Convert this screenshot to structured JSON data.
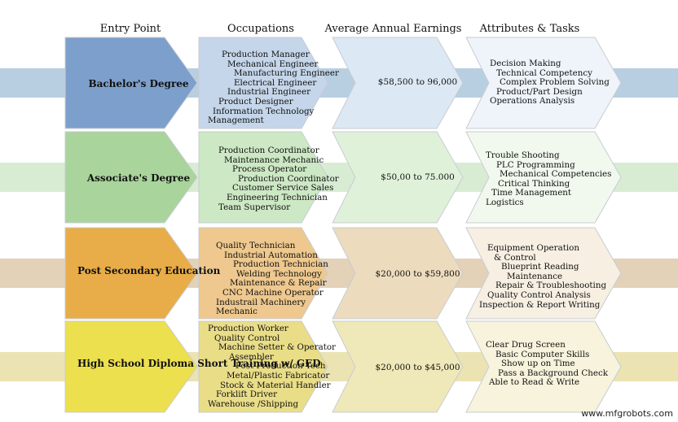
{
  "headers": {
    "entry": "Entry Point",
    "occupations": "Occupations",
    "earnings": "Average Annual Earnings",
    "attributes": "Attributes & Tasks"
  },
  "rows": [
    {
      "entry": [
        "Bachelor's Degree"
      ],
      "occupations": [
        "Production Manager",
        "Mechanical Engineer",
        "Manufacturing Engineer",
        "Electrical Engineer",
        "Industrial Engineer",
        "Product Designer",
        "Information Technology",
        "Management"
      ],
      "earnings": "$58,500 to 96,000",
      "attributes": [
        "Decision Making",
        "Technical Competency",
        "Complex Problem Solving",
        "Product/Part Design",
        "Operations Analysis"
      ],
      "colors": {
        "band": "#b8cfe2",
        "entry": "#7d9fcc",
        "occ": "#c5d6ea",
        "earn": "#dce8f4",
        "attr": "#eef4fa"
      }
    },
    {
      "entry": [
        "Associate's Degree"
      ],
      "occupations": [
        "Production Coordinator",
        "Maintenance Mechanic",
        "Process Operator",
        "Production Coordinator",
        "Customer Service Sales",
        "Engineering Technician",
        "Team Supervisor"
      ],
      "earnings": "$50,00 to 75.000",
      "attributes": [
        "Trouble Shooting",
        "PLC Programming",
        "Mechanical Competencies",
        "Critical Thinking",
        "Time Management",
        "Logistics"
      ],
      "colors": {
        "band": "#d8ecd3",
        "entry": "#a9d49b",
        "occ": "#cde8c4",
        "earn": "#e0f1da",
        "attr": "#f1f8ee"
      }
    },
    {
      "entry": [
        "Post Secondary",
        "Education"
      ],
      "occupations": [
        "Quality Technician",
        "Industrial Automation",
        "Production Technician",
        "Welding Technology",
        "Maintenance & Repair",
        "CNC Machine Operator",
        "Industrail Machinery",
        "Mechanic"
      ],
      "earnings": "$20,000 to $59,800",
      "attributes": [
        "Equipment Operation",
        "& Control",
        "Blueprint Reading",
        "Maintenance",
        "Repair & Troubleshooting",
        "Quality Control Analysis",
        "Inspection & Report Writing"
      ],
      "colors": {
        "band": "#e3d1b8",
        "entry": "#e8ad48",
        "occ": "#eec88e",
        "earn": "#ecdcbd",
        "attr": "#f6efe2"
      }
    },
    {
      "entry": [
        "High School Diploma",
        "Short Training w/ GED"
      ],
      "occupations": [
        "Production Worker",
        "Quality Control",
        "Machine Setter & Operator",
        "Assembler",
        "Post Production Tech",
        "Metal/Plastic Fabricator",
        "Stock & Material Handler",
        "Forklift Driver",
        "Warehouse /Shipping"
      ],
      "earnings": "$20,000 to $45,000",
      "attributes": [
        "Clear Drug Screen",
        "Basic Computer Skills",
        "Show up on Time",
        "Pass a Background Check",
        "Able to Read & Write"
      ],
      "colors": {
        "band": "#ebe3b2",
        "entry": "#ede04e",
        "occ": "#e9dd88",
        "earn": "#efe8b8",
        "attr": "#f7f3dc"
      }
    }
  ],
  "watermark": "www.mfgrobots.com",
  "colors": {
    "outline": "#c8ccd2"
  }
}
